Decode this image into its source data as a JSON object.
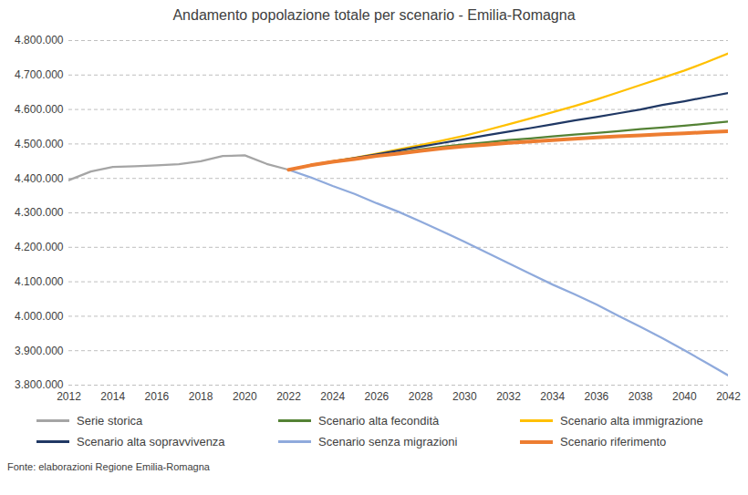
{
  "chart_data": {
    "type": "line",
    "title": "Andamento popolazione totale per scenario - Emilia-Romagna",
    "caption": "Fonte: elaborazioni Regione Emilia-Romagna",
    "x": [
      2012,
      2013,
      2014,
      2015,
      2016,
      2017,
      2018,
      2019,
      2020,
      2021,
      2022,
      2023,
      2024,
      2025,
      2026,
      2027,
      2028,
      2029,
      2030,
      2031,
      2032,
      2033,
      2034,
      2035,
      2036,
      2037,
      2038,
      2039,
      2040,
      2041,
      2042
    ],
    "xlim": [
      2012,
      2042
    ],
    "xticks": [
      2012,
      2014,
      2016,
      2018,
      2020,
      2022,
      2024,
      2026,
      2028,
      2030,
      2032,
      2034,
      2036,
      2038,
      2040,
      2042
    ],
    "ylim": [
      3800000,
      4800000
    ],
    "yticks": [
      {
        "value": 3800000,
        "label": "3.800.000"
      },
      {
        "value": 3900000,
        "label": "3.900.000"
      },
      {
        "value": 4000000,
        "label": "4.000.000"
      },
      {
        "value": 4100000,
        "label": "4.100.000"
      },
      {
        "value": 4200000,
        "label": "4.200.000"
      },
      {
        "value": 4300000,
        "label": "4.300.000"
      },
      {
        "value": 4400000,
        "label": "4.400.000"
      },
      {
        "value": 4500000,
        "label": "4.500.000"
      },
      {
        "value": 4600000,
        "label": "4.600.000"
      },
      {
        "value": 4700000,
        "label": "4.700.000"
      },
      {
        "value": 4800000,
        "label": "4.800.000"
      }
    ],
    "grid": true,
    "legend": "bottom",
    "series": [
      {
        "name": "Serie storica",
        "color": "#a5a5a5",
        "line_style": "solid",
        "values": [
          4395000,
          4420000,
          4433000,
          4435000,
          4438000,
          4441000,
          4450000,
          4465000,
          4467000,
          4442000,
          4425000,
          null,
          null,
          null,
          null,
          null,
          null,
          null,
          null,
          null,
          null,
          null,
          null,
          null,
          null,
          null,
          null,
          null,
          null,
          null,
          null
        ]
      },
      {
        "name": "Scenario alta fecondità",
        "color": "#548235",
        "line_style": "solid",
        "values": [
          null,
          null,
          null,
          null,
          null,
          null,
          null,
          null,
          null,
          null,
          4425000,
          4438000,
          4448000,
          4457000,
          4466000,
          4475000,
          4484000,
          4492000,
          4499000,
          4505000,
          4511000,
          4516000,
          4522000,
          4527000,
          4532000,
          4537000,
          4543000,
          4548000,
          4553000,
          4559000,
          4565000
        ]
      },
      {
        "name": "Scenario alta immigrazione",
        "color": "#ffc000",
        "line_style": "solid",
        "values": [
          null,
          null,
          null,
          null,
          null,
          null,
          null,
          null,
          null,
          null,
          4425000,
          4439000,
          4450000,
          4460000,
          4472000,
          4484000,
          4497000,
          4510000,
          4524000,
          4540000,
          4557000,
          4574000,
          4592000,
          4610000,
          4629000,
          4650000,
          4671000,
          4692000,
          4713000,
          4737000,
          4763000
        ]
      },
      {
        "name": "Scenario alta sopravvivenza",
        "color": "#203864",
        "line_style": "solid",
        "values": [
          null,
          null,
          null,
          null,
          null,
          null,
          null,
          null,
          null,
          null,
          4425000,
          4438000,
          4449000,
          4459000,
          4470000,
          4481000,
          4492000,
          4503000,
          4514000,
          4525000,
          4536000,
          4546000,
          4557000,
          4568000,
          4578000,
          4589000,
          4600000,
          4613000,
          4624000,
          4636000,
          4648000
        ]
      },
      {
        "name": "Scenario senza migrazioni",
        "color": "#8faadc",
        "line_style": "solid",
        "values": [
          null,
          null,
          null,
          null,
          null,
          null,
          null,
          null,
          null,
          null,
          4425000,
          4403000,
          4378000,
          4355000,
          4328000,
          4303000,
          4275000,
          4246000,
          4216000,
          4185000,
          4154000,
          4123000,
          4092000,
          4064000,
          4034000,
          4001000,
          3969000,
          3936000,
          3901000,
          3865000,
          3828000
        ]
      },
      {
        "name": "Scenario riferimento",
        "color": "#ed7d31",
        "line_style": "thick",
        "values": [
          null,
          null,
          null,
          null,
          null,
          null,
          null,
          null,
          null,
          null,
          4425000,
          4438000,
          4448000,
          4456000,
          4465000,
          4472000,
          4480000,
          4487000,
          4493000,
          4498000,
          4503000,
          4507000,
          4511000,
          4515000,
          4519000,
          4522000,
          4525000,
          4528000,
          4531000,
          4534000,
          4537000
        ]
      }
    ]
  }
}
